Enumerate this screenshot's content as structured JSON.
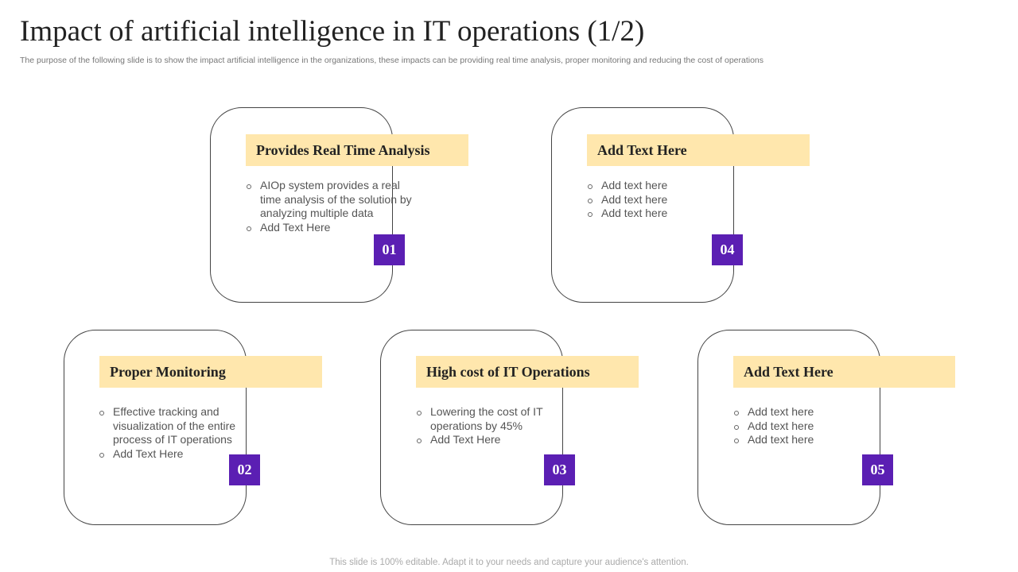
{
  "slide": {
    "title": "Impact of artificial intelligence in IT operations (1/2)",
    "subtitle": "The purpose of the following slide is to show the impact  artificial intelligence in the organizations, these impacts can be providing real time analysis, proper monitoring and reducing the cost of operations",
    "footer": "This slide is 100% editable. Adapt it to your needs and capture your audience's attention."
  },
  "cards": [
    {
      "number": "01",
      "heading": "Provides Real Time Analysis",
      "bullets": [
        "AIOp system provides a real time analysis of the solution by analyzing multiple data",
        "Add Text Here"
      ]
    },
    {
      "number": "04",
      "heading": "Add Text Here",
      "bullets": [
        "Add text here",
        "Add text here",
        "Add text here"
      ]
    },
    {
      "number": "02",
      "heading": "Proper Monitoring",
      "bullets": [
        "Effective tracking and visualization of the entire process of IT operations",
        "Add Text Here"
      ]
    },
    {
      "number": "03",
      "heading": "High cost of IT Operations",
      "bullets": [
        "Lowering the cost of IT operations by 45%",
        "Add Text Here"
      ]
    },
    {
      "number": "05",
      "heading": "Add Text Here",
      "bullets": [
        "Add text here",
        "Add text here",
        "Add text here"
      ]
    }
  ],
  "colors": {
    "accent": "#5b1fb3",
    "highlight": "#ffe7ad",
    "outline": "#444444"
  }
}
